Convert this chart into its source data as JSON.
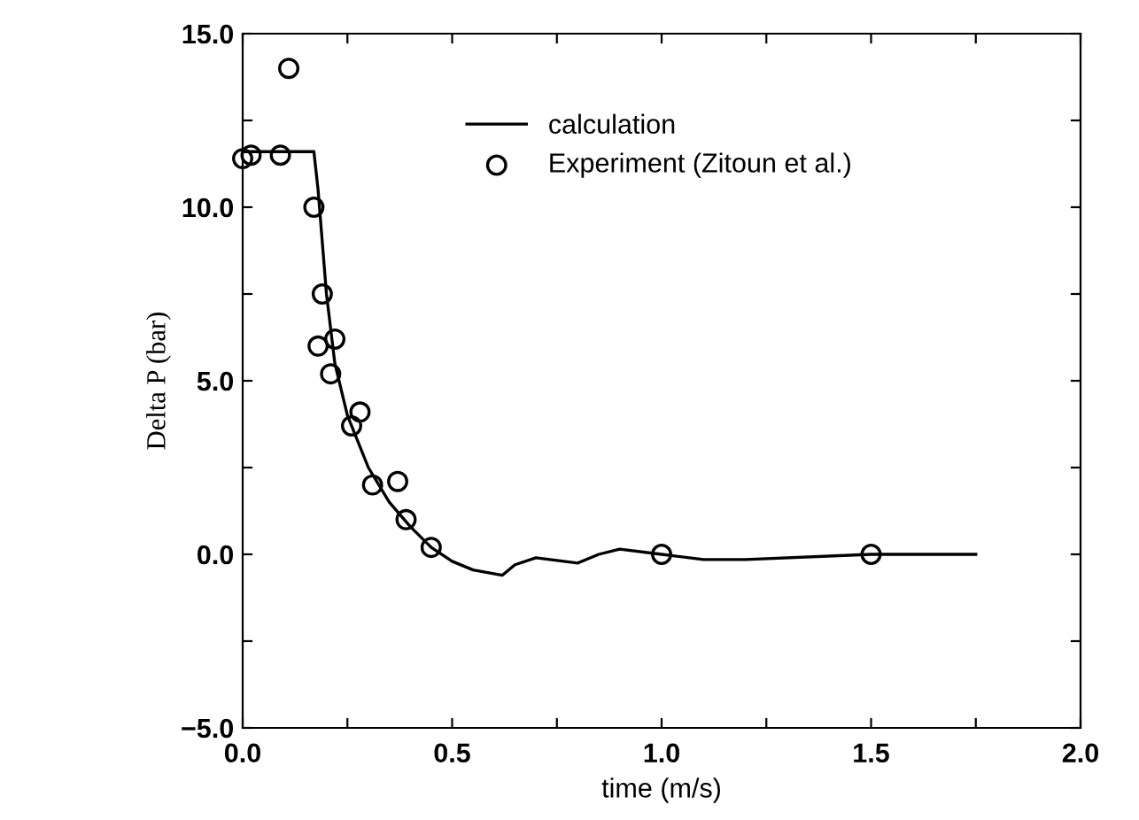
{
  "chart_data": {
    "type": "line",
    "xlabel": "time (m/s)",
    "ylabel": "Delta P (bar)",
    "xlim": [
      0,
      2
    ],
    "ylim": [
      -5,
      15
    ],
    "xticks": [
      {
        "value": 0,
        "label": "0.0"
      },
      {
        "value": 0.25,
        "label": null
      },
      {
        "value": 0.5,
        "label": "0.5"
      },
      {
        "value": 0.75,
        "label": null
      },
      {
        "value": 1,
        "label": "1.0"
      },
      {
        "value": 1.25,
        "label": null
      },
      {
        "value": 1.5,
        "label": "1.5"
      },
      {
        "value": 1.75,
        "label": null
      },
      {
        "value": 2,
        "label": "2.0"
      }
    ],
    "yticks": [
      {
        "value": -5,
        "label": "−5.0"
      },
      {
        "value": -2.5,
        "label": null
      },
      {
        "value": 0,
        "label": "0.0"
      },
      {
        "value": 2.5,
        "label": null
      },
      {
        "value": 5,
        "label": "5.0"
      },
      {
        "value": 7.5,
        "label": null
      },
      {
        "value": 10,
        "label": "10.0"
      },
      {
        "value": 12.5,
        "label": null
      },
      {
        "value": 15,
        "label": "15.0"
      }
    ],
    "grid": false,
    "legend": "top right",
    "series": [
      {
        "name": "calculation",
        "color": "#000000",
        "marker": "none",
        "line_style": "solid",
        "x": [
          0,
          0.17,
          0.18,
          0.2,
          0.22,
          0.25,
          0.3,
          0.35,
          0.4,
          0.45,
          0.5,
          0.55,
          0.62,
          0.65,
          0.7,
          0.8,
          0.85,
          0.9,
          1.0,
          1.1,
          1.2,
          1.5,
          1.75
        ],
        "values": [
          11.6,
          11.6,
          10.5,
          7.5,
          5.5,
          4.0,
          2.5,
          1.5,
          0.8,
          0.2,
          -0.2,
          -0.45,
          -0.6,
          -0.3,
          -0.1,
          -0.25,
          0.0,
          0.15,
          0.0,
          -0.15,
          -0.15,
          0.0,
          0.0
        ]
      },
      {
        "name": "Experiment (Zitoun et al.)",
        "type": "scatter",
        "color": "#000000",
        "marker": "circle",
        "x": [
          0.0,
          0.02,
          0.09,
          0.11,
          0.17,
          0.19,
          0.18,
          0.21,
          0.22,
          0.26,
          0.28,
          0.31,
          0.37,
          0.39,
          0.45,
          1.0,
          1.5
        ],
        "values": [
          11.4,
          11.5,
          11.5,
          14.0,
          10.0,
          7.5,
          6.0,
          5.2,
          6.2,
          3.7,
          4.1,
          2.0,
          2.1,
          1.0,
          0.2,
          0.0,
          0.0
        ]
      }
    ]
  }
}
